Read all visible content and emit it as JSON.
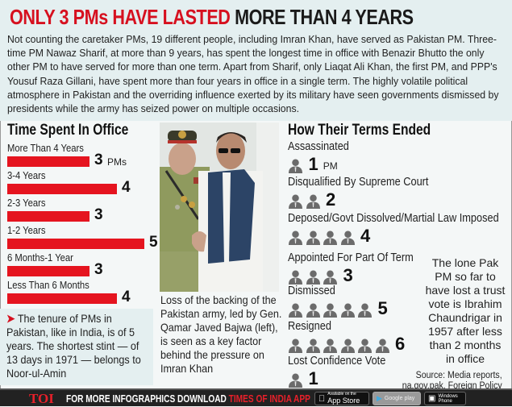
{
  "header": {
    "title_red": "ONLY 3 PMs HAVE LASTED",
    "title_black": "MORE THAN 4 YEARS",
    "intro": "Not counting the caretaker PMs, 19 different people, including Imran Khan, have served as Pakistan PM. Three-time PM Nawaz Sharif, at more than 9 years, has spent the longest time in office with Benazir Bhutto the only other PM to have served for more than one term. Apart from Sharif, only Liaqat Ali Khan, the first PM, and PPP's Yousuf Raza Gillani, have spent more than four years in office in a single term. The highly volatile political atmosphere in Pakistan and the overriding influence exerted by its military have seen governments dismissed by presidents while the army has seized power on multiple occasions."
  },
  "chart_data": [
    {
      "type": "bar",
      "title": "Time Spent In Office",
      "categories": [
        "More Than 4 Years",
        "3-4 Years",
        "2-3 Years",
        "1-2 Years",
        "6 Months-1 Year",
        "Less Than 6 Months"
      ],
      "values": [
        3,
        4,
        3,
        5,
        3,
        4
      ],
      "value_unit": "PMs",
      "orientation": "horizontal",
      "color": "#e5141f"
    },
    {
      "type": "pictograph",
      "title": "How Their Terms Ended",
      "categories": [
        "Assassinated",
        "Disqualified By Supreme Court",
        "Deposed/Govt Dissolved/Martial Law Imposed",
        "Appointed For Part Of Term",
        "Dismissed",
        "Resigned",
        "Lost Confidence Vote"
      ],
      "values": [
        1,
        2,
        4,
        3,
        5,
        6,
        1
      ],
      "value_unit": "PM",
      "icon": "person-icon",
      "icon_color": "#6b6b6b"
    }
  ],
  "note": {
    "arrow": "➤",
    "text": "The tenure of PMs in Pakistan, like in India, is of 5 years. The shortest stint — of 13 days in 1971 — belongs to Noor-ul-Amin"
  },
  "photo": {
    "caption": "Loss of the backing of the Pakistan army, led by Gen. Qamar Javed Bajwa (left), is seen as a key factor behind the pressure on Imran Khan"
  },
  "side_note": "The lone Pak PM so far to have lost a trust vote is Ibrahim Chaundrigar in 1957 after less than 2 months in office",
  "source": {
    "line1": "Source: Media reports,",
    "line2": "na.gov.pak, Foreign Policy"
  },
  "footer": {
    "logo": "TOI",
    "text_white": "FOR MORE  INFOGRAPHICS DOWNLOAD ",
    "text_red": "TIMES OF INDIA  APP",
    "app_store_small": "Available on the",
    "app_store": "App Store",
    "google_play": "Google play",
    "windows_line1": "Windows",
    "windows_line2": "Phone"
  },
  "colors": {
    "accent_red": "#d6101f",
    "panel_bg": "#e4eff0",
    "footer_bg": "#222222"
  }
}
